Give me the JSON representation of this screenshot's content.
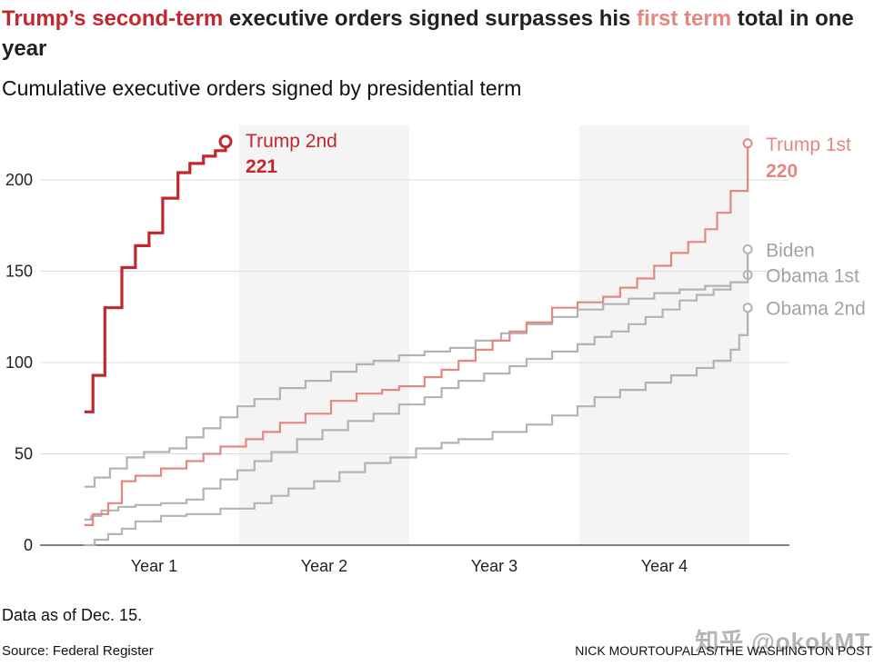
{
  "headline": {
    "part1": "Trump’s second-term",
    "part2": " executive orders signed surpasses his ",
    "part3": "first term",
    "part4": " total in one year"
  },
  "subtitle": "Cumulative executive orders signed by presidential term",
  "note": "Data as of Dec. 15.",
  "source": "Source: Federal Register",
  "credit": "NICK MOURTOUPALAS/THE WASHINGTON POST",
  "watermark": "知乎 @okokMT",
  "colors": {
    "trump2": "#c0282d",
    "trump1": "#e3887f",
    "gray": "#b3b3b3",
    "label_gray": "#a3a3a3",
    "band": "#f4f4f4",
    "grid": "#dedede"
  },
  "chart_data": {
    "type": "line",
    "step": true,
    "xlabel": "",
    "ylabel": "",
    "xlim": [
      0,
      4
    ],
    "ylim": [
      0,
      230
    ],
    "yticks": [
      0,
      50,
      100,
      150,
      200
    ],
    "year_labels": [
      "Year 1",
      "Year 2",
      "Year 3",
      "Year 4"
    ],
    "shaded_years": [
      2,
      4
    ],
    "grid": true,
    "series": [
      {
        "name": "Obama 2nd",
        "color": "gray",
        "label": "Obama 2nd",
        "end_value": 130,
        "x": [
          0,
          0.06,
          0.14,
          0.22,
          0.3,
          0.45,
          0.6,
          0.8,
          1.0,
          1.1,
          1.2,
          1.35,
          1.5,
          1.65,
          1.8,
          1.95,
          2.1,
          2.2,
          2.4,
          2.6,
          2.75,
          2.9,
          3.0,
          3.15,
          3.3,
          3.45,
          3.6,
          3.7,
          3.8,
          3.85,
          3.9
        ],
        "y": [
          0,
          3,
          6,
          9,
          13,
          16,
          17,
          20,
          23,
          27,
          31,
          35,
          40,
          45,
          48,
          53,
          56,
          58,
          62,
          66,
          71,
          76,
          81,
          85,
          89,
          93,
          97,
          101,
          107,
          115,
          130
        ]
      },
      {
        "name": "Obama 1st",
        "color": "gray",
        "label": "Obama 1st",
        "end_value": 148,
        "x": [
          0,
          0.04,
          0.1,
          0.2,
          0.3,
          0.45,
          0.6,
          0.7,
          0.8,
          0.9,
          1.0,
          1.1,
          1.25,
          1.4,
          1.55,
          1.7,
          1.85,
          2.0,
          2.1,
          2.2,
          2.35,
          2.5,
          2.6,
          2.75,
          2.9,
          3.0,
          3.1,
          3.2,
          3.3,
          3.4,
          3.5,
          3.6,
          3.7,
          3.8,
          3.9
        ],
        "y": [
          14,
          16,
          19,
          21,
          22,
          23,
          25,
          31,
          36,
          41,
          46,
          51,
          58,
          63,
          68,
          72,
          77,
          81,
          86,
          90,
          94,
          98,
          102,
          106,
          110,
          114,
          117,
          121,
          125,
          129,
          134,
          137,
          140,
          144,
          148
        ]
      },
      {
        "name": "Biden",
        "color": "gray",
        "label": "Biden",
        "end_value": 162,
        "x": [
          0,
          0.06,
          0.15,
          0.25,
          0.35,
          0.5,
          0.6,
          0.7,
          0.8,
          0.9,
          1.0,
          1.15,
          1.3,
          1.45,
          1.6,
          1.7,
          1.85,
          2.0,
          2.15,
          2.3,
          2.45,
          2.6,
          2.75,
          2.9,
          3.05,
          3.2,
          3.35,
          3.5,
          3.65,
          3.8,
          3.9
        ],
        "y": [
          32,
          37,
          42,
          48,
          51,
          53,
          59,
          64,
          70,
          76,
          80,
          86,
          90,
          95,
          99,
          101,
          104,
          106,
          108,
          112,
          116,
          121,
          125,
          129,
          132,
          135,
          138,
          140,
          142,
          144,
          162
        ]
      },
      {
        "name": "Trump 1st",
        "color": "trump1",
        "label": "Trump 1st",
        "end_value": 220,
        "x": [
          0,
          0.05,
          0.14,
          0.22,
          0.3,
          0.45,
          0.6,
          0.7,
          0.8,
          0.95,
          1.05,
          1.15,
          1.3,
          1.45,
          1.6,
          1.75,
          1.85,
          2.0,
          2.1,
          2.2,
          2.3,
          2.4,
          2.5,
          2.6,
          2.75,
          2.9,
          3.05,
          3.15,
          3.25,
          3.35,
          3.45,
          3.55,
          3.65,
          3.72,
          3.8,
          3.9
        ],
        "y": [
          11,
          17,
          23,
          35,
          38,
          42,
          46,
          50,
          54,
          58,
          62,
          67,
          72,
          79,
          83,
          85,
          87,
          92,
          96,
          101,
          107,
          112,
          117,
          122,
          130,
          133,
          136,
          141,
          146,
          153,
          160,
          166,
          173,
          182,
          194,
          220
        ]
      },
      {
        "name": "Trump 2nd",
        "color": "trump2",
        "label": "Trump 2nd",
        "end_value": 221,
        "x": [
          0,
          0.05,
          0.12,
          0.22,
          0.3,
          0.38,
          0.46,
          0.55,
          0.62,
          0.7,
          0.77,
          0.83
        ],
        "y": [
          73,
          93,
          130,
          152,
          164,
          171,
          190,
          204,
          209,
          213,
          216,
          221
        ]
      }
    ]
  }
}
